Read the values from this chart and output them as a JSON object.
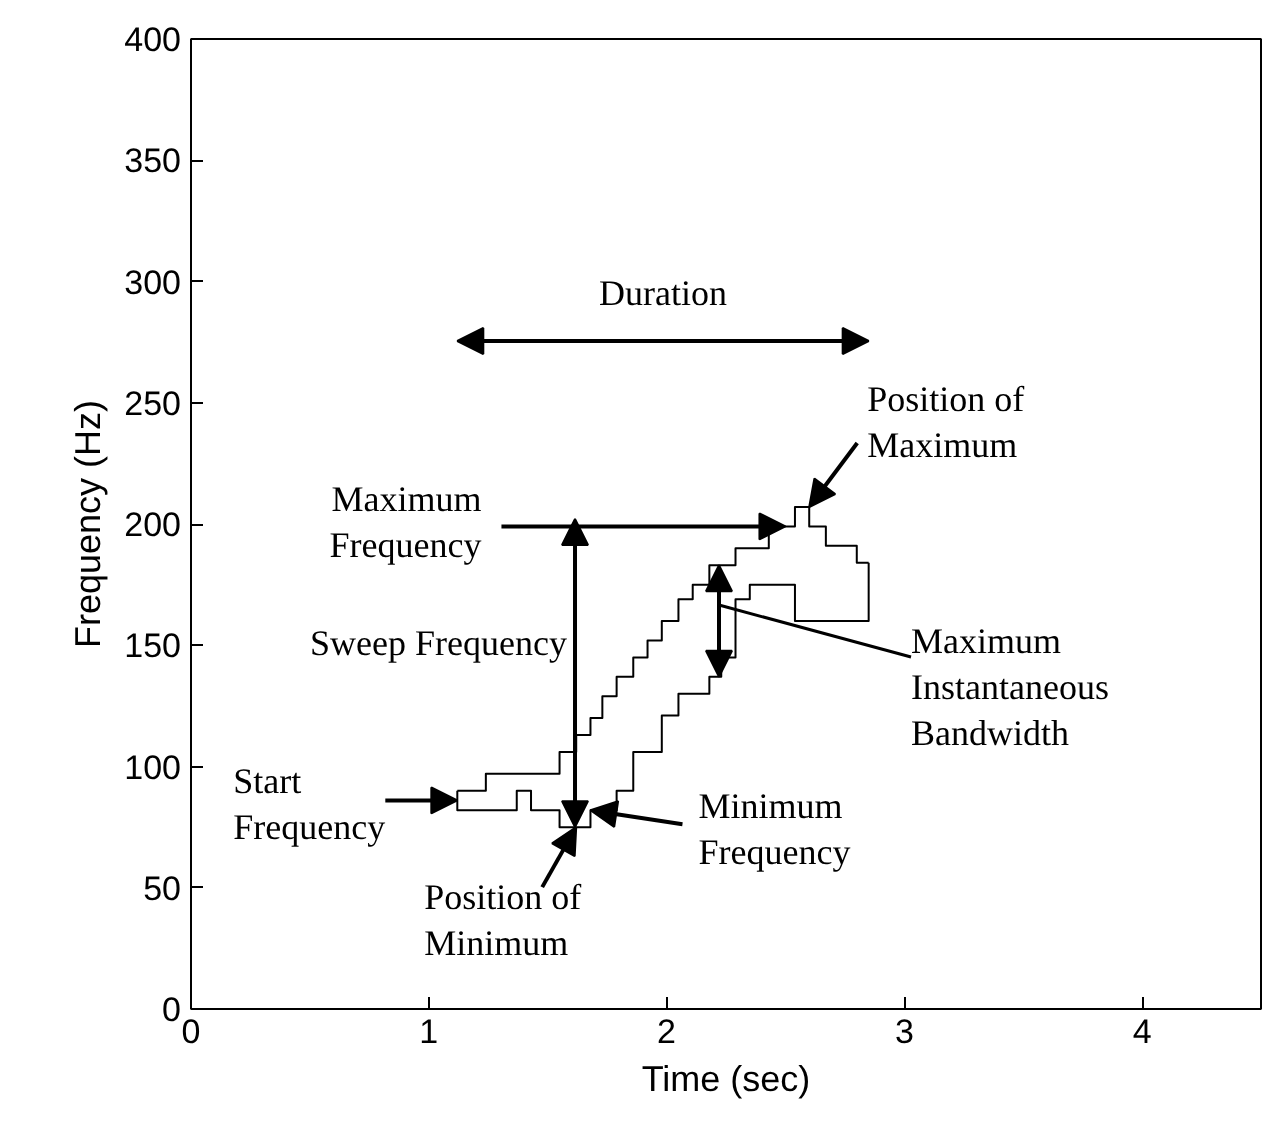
{
  "chart_data": {
    "type": "step",
    "xlabel": "Time (sec)",
    "ylabel": "Frequency (Hz)",
    "xlim": [
      0,
      4.5
    ],
    "ylim": [
      0,
      400
    ],
    "xticks": [
      0,
      1,
      2,
      3,
      4
    ],
    "yticks": [
      0,
      50,
      100,
      150,
      200,
      250,
      300,
      350,
      400
    ],
    "series": [
      {
        "color": "#000000",
        "x": [
          1.12,
          1.24,
          1.55,
          1.62,
          1.68,
          1.73,
          1.79,
          1.86,
          1.92,
          1.98,
          2.05,
          2.11,
          2.18,
          2.29,
          2.43,
          2.54,
          2.6,
          2.67,
          2.8,
          2.85
        ],
        "values": [
          90,
          97,
          106,
          113,
          120,
          129,
          137,
          145,
          152,
          160,
          169,
          175,
          183,
          190,
          199,
          207,
          199,
          191,
          184,
          184
        ]
      },
      {
        "color": "#000000",
        "x": [
          1.12,
          1.12,
          1.37,
          1.43,
          1.55,
          1.68,
          1.79,
          1.86,
          1.98,
          2.05,
          2.18,
          2.23,
          2.29,
          2.35,
          2.54,
          2.85,
          2.85
        ],
        "values": [
          90,
          82,
          90,
          82,
          75,
          82,
          90,
          106,
          121,
          130,
          137,
          145,
          169,
          175,
          160,
          160,
          184
        ]
      }
    ],
    "annotations": [
      "Duration",
      {
        "text": "Position of\nMaximum",
        "x": 2.6,
        "y": 207
      },
      {
        "text": "Maximum\nFrequency",
        "x": 2.5,
        "y": 199
      },
      "Sweep Frequency",
      "Maximum\nInstantaneous\nBandwidth",
      {
        "text": "Start\nFrequency",
        "x": 1.12,
        "y": 86
      },
      {
        "text": "Minimum\nFrequency",
        "x": 1.68,
        "y": 82
      },
      {
        "text": "Position of\nMinimum",
        "x": 1.62,
        "y": 75
      }
    ]
  }
}
